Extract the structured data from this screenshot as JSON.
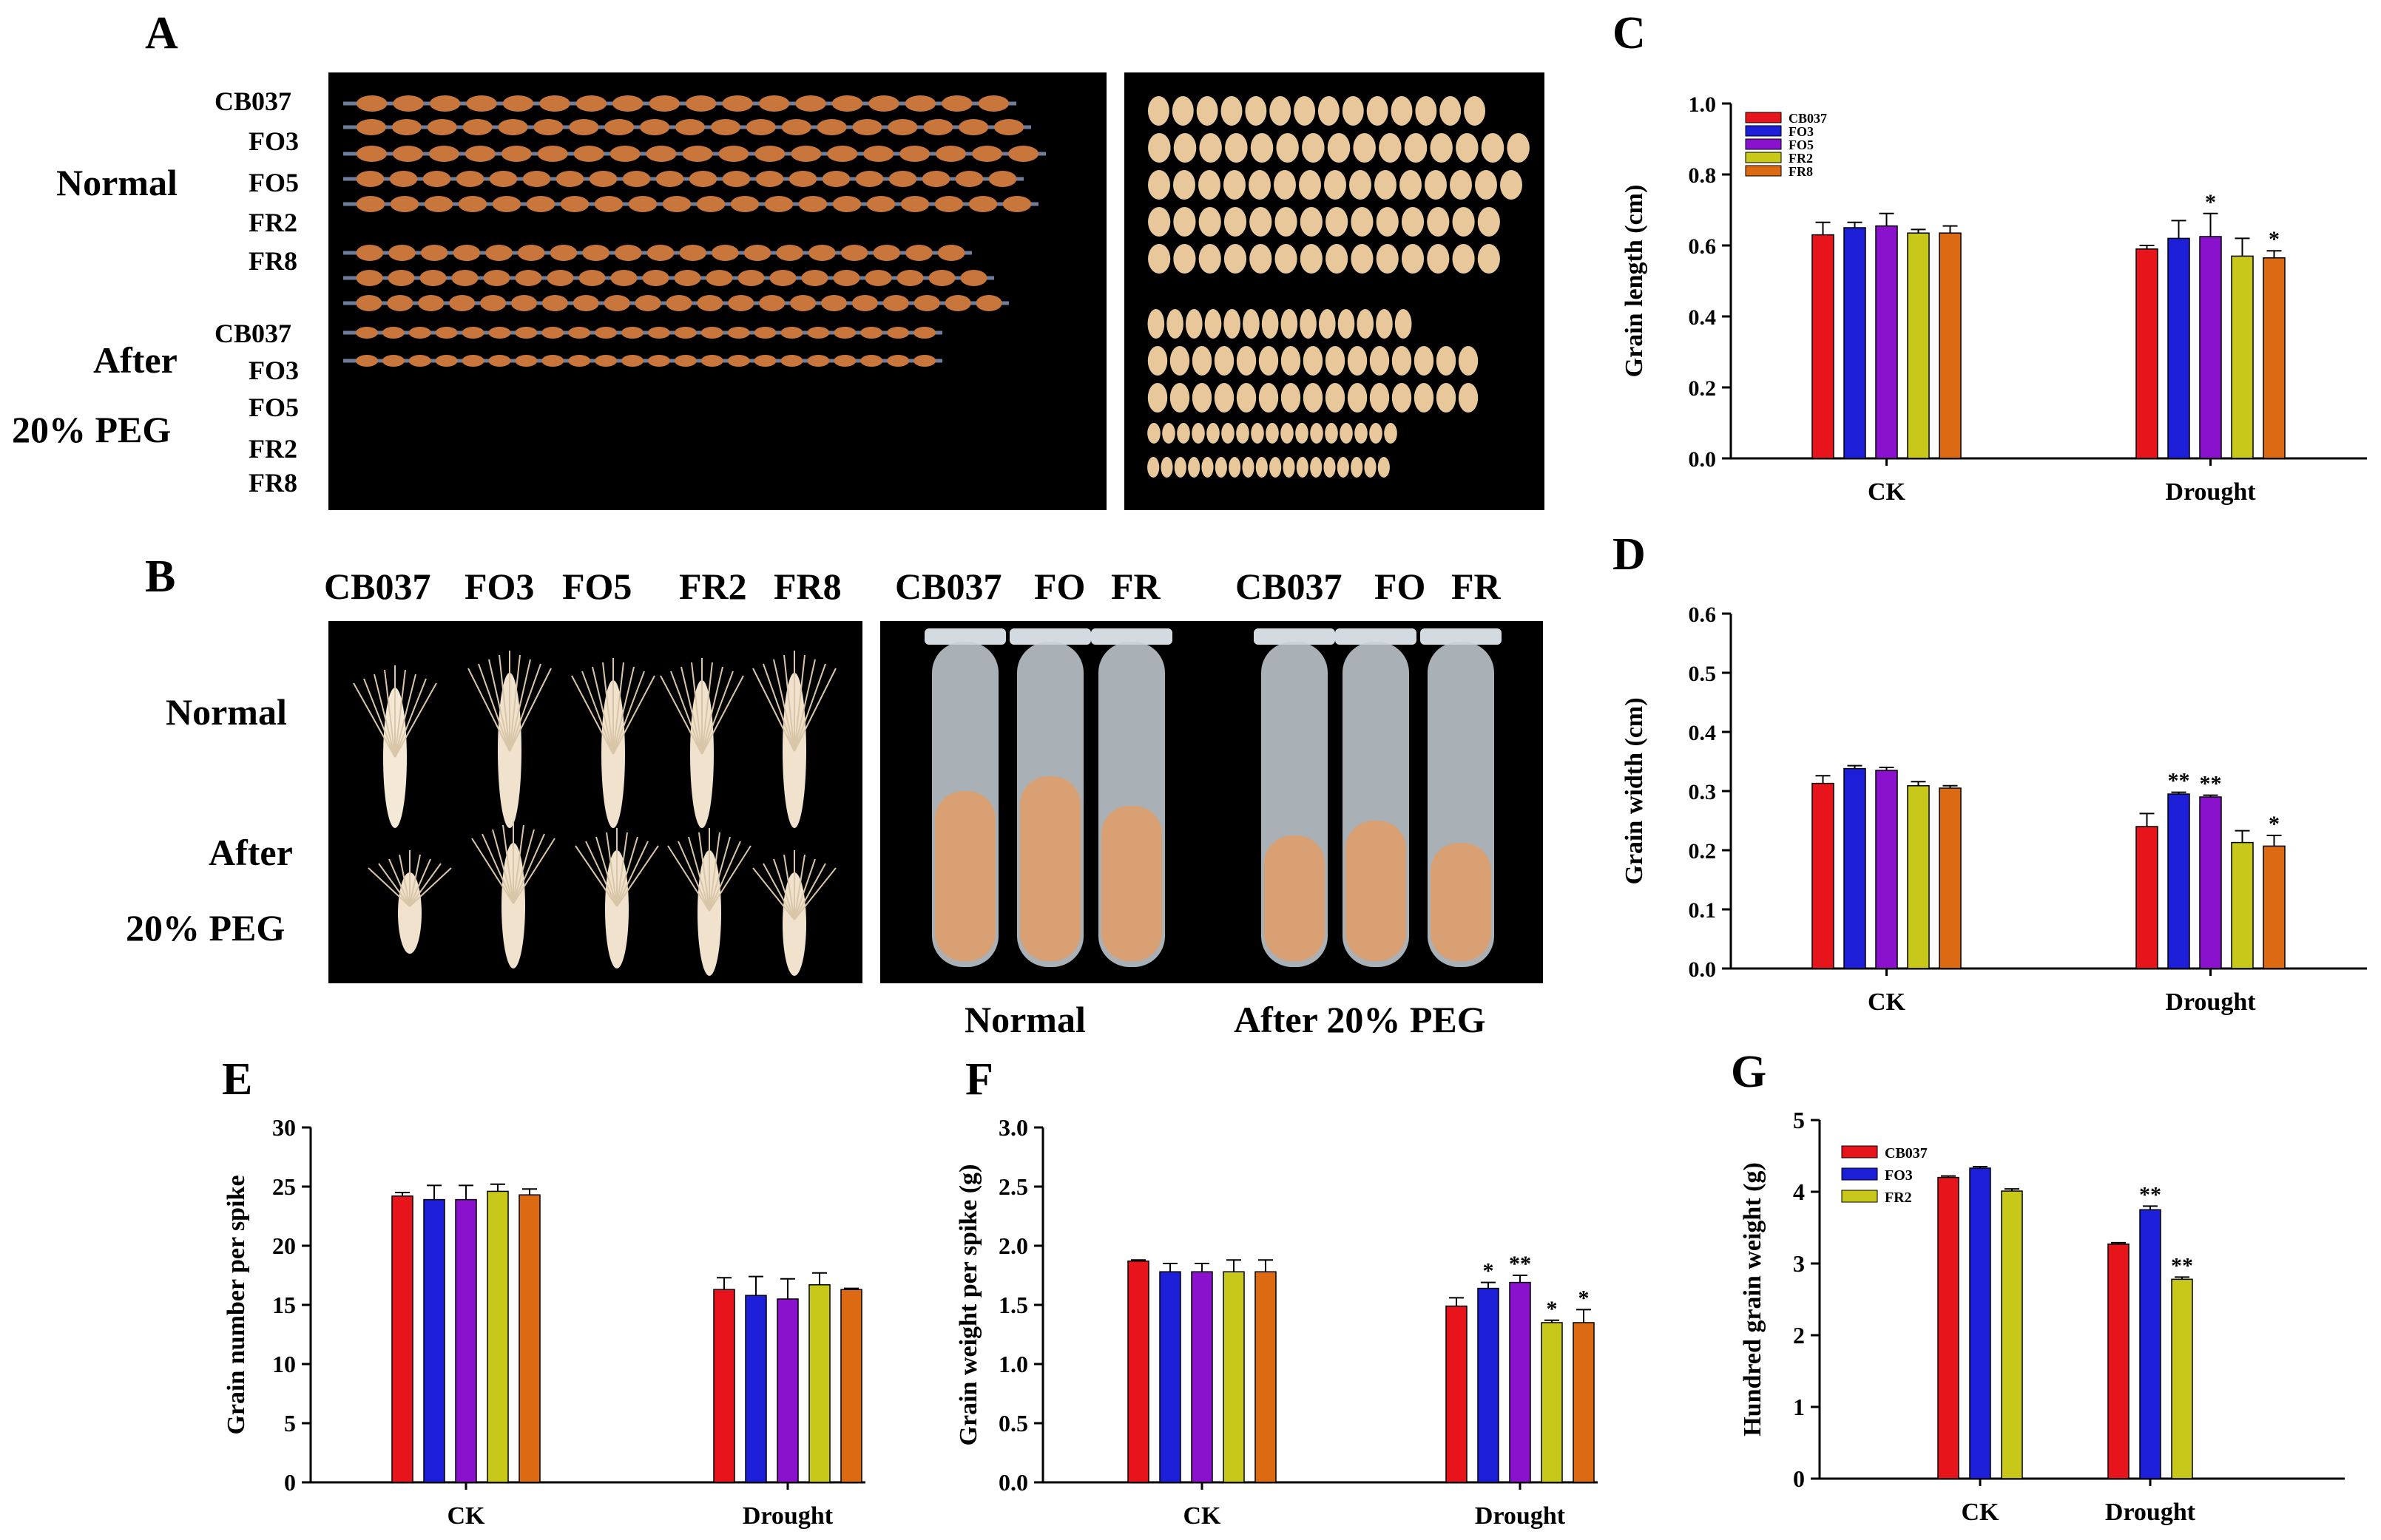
{
  "panel_labels": {
    "A": "A",
    "B": "B",
    "C": "C",
    "D": "D",
    "E": "E",
    "F": "F",
    "G": "G"
  },
  "panelA": {
    "row_labels_top": [
      "CB037",
      "FO3",
      "FO5",
      "FR2",
      "FR8"
    ],
    "row_labels_bottom": [
      "CB037",
      "FO3",
      "FO5",
      "FR2",
      "FR8"
    ],
    "normal": "Normal",
    "after": "After",
    "peg": "20% PEG"
  },
  "panelB": {
    "spike_headers": [
      "CB037",
      "FO3",
      "FO5",
      "FR2",
      "FR8"
    ],
    "tube_headers_normal": [
      "CB037",
      "FO",
      "FR"
    ],
    "tube_headers_peg": [
      "CB037",
      "FO",
      "FR"
    ],
    "normal": "Normal",
    "after": "After",
    "peg": "20% PEG",
    "caption_normal": "Normal",
    "caption_peg": "After 20% PEG"
  },
  "colors": {
    "CB037": "#e8141c",
    "FO3": "#1c1ed8",
    "FO5": "#8a12cc",
    "FR2": "#c8c81a",
    "FR8": "#dc6a12",
    "photo_bg": "#000000",
    "grain": "#c8763c"
  },
  "chart_data": [
    {
      "id": "C",
      "type": "bar",
      "ylabel": "Grain length (cm)",
      "ylim": [
        0,
        1.0
      ],
      "yticks": [
        "0.0",
        "0.2",
        "0.4",
        "0.6",
        "0.8",
        "1.0"
      ],
      "categories": [
        "CK",
        "Drought"
      ],
      "legend": [
        "CB037",
        "FO3",
        "FO5",
        "FR2",
        "FR8"
      ],
      "legend_position": "top-left",
      "series": [
        {
          "name": "CB037",
          "values": [
            0.63,
            0.59
          ],
          "errors": [
            0.035,
            0.01
          ],
          "sig": [
            "",
            ""
          ]
        },
        {
          "name": "FO3",
          "values": [
            0.65,
            0.62
          ],
          "errors": [
            0.015,
            0.05
          ],
          "sig": [
            "",
            ""
          ]
        },
        {
          "name": "FO5",
          "values": [
            0.655,
            0.625
          ],
          "errors": [
            0.035,
            0.065
          ],
          "sig": [
            "",
            "*"
          ]
        },
        {
          "name": "FR2",
          "values": [
            0.635,
            0.57
          ],
          "errors": [
            0.01,
            0.05
          ],
          "sig": [
            "",
            ""
          ]
        },
        {
          "name": "FR8",
          "values": [
            0.635,
            0.565
          ],
          "errors": [
            0.02,
            0.02
          ],
          "sig": [
            "",
            "*"
          ]
        }
      ]
    },
    {
      "id": "D",
      "type": "bar",
      "ylabel": "Grain width (cm)",
      "ylim": [
        0,
        0.6
      ],
      "yticks": [
        "0.0",
        "0.1",
        "0.2",
        "0.3",
        "0.4",
        "0.5",
        "0.6"
      ],
      "categories": [
        "CK",
        "Drought"
      ],
      "legend": [],
      "series": [
        {
          "name": "CB037",
          "values": [
            0.313,
            0.24
          ],
          "errors": [
            0.013,
            0.022
          ],
          "sig": [
            "",
            ""
          ]
        },
        {
          "name": "FO3",
          "values": [
            0.338,
            0.295
          ],
          "errors": [
            0.005,
            0.003
          ],
          "sig": [
            "",
            "**"
          ]
        },
        {
          "name": "FO5",
          "values": [
            0.335,
            0.29
          ],
          "errors": [
            0.005,
            0.003
          ],
          "sig": [
            "",
            "**"
          ]
        },
        {
          "name": "FR2",
          "values": [
            0.309,
            0.213
          ],
          "errors": [
            0.007,
            0.02
          ],
          "sig": [
            "",
            ""
          ]
        },
        {
          "name": "FR8",
          "values": [
            0.305,
            0.207
          ],
          "errors": [
            0.004,
            0.018
          ],
          "sig": [
            "",
            "*"
          ]
        }
      ]
    },
    {
      "id": "E",
      "type": "bar",
      "ylabel": "Grain number per spike",
      "ylim": [
        0,
        30
      ],
      "yticks": [
        "0",
        "5",
        "10",
        "15",
        "20",
        "25",
        "30"
      ],
      "categories": [
        "CK",
        "Drought"
      ],
      "legend": [],
      "series": [
        {
          "name": "CB037",
          "values": [
            24.2,
            16.3
          ],
          "errors": [
            0.3,
            1.0
          ],
          "sig": [
            "",
            ""
          ]
        },
        {
          "name": "FO3",
          "values": [
            23.9,
            15.8
          ],
          "errors": [
            1.2,
            1.6
          ],
          "sig": [
            "",
            ""
          ]
        },
        {
          "name": "FO5",
          "values": [
            23.9,
            15.5
          ],
          "errors": [
            1.2,
            1.7
          ],
          "sig": [
            "",
            ""
          ]
        },
        {
          "name": "FR2",
          "values": [
            24.6,
            16.7
          ],
          "errors": [
            0.6,
            1.0
          ],
          "sig": [
            "",
            ""
          ]
        },
        {
          "name": "FR8",
          "values": [
            24.3,
            16.3
          ],
          "errors": [
            0.5,
            0.1
          ],
          "sig": [
            "",
            ""
          ]
        }
      ]
    },
    {
      "id": "F",
      "type": "bar",
      "ylabel": "Grain weight per spike (g)",
      "ylim": [
        0,
        3.0
      ],
      "yticks": [
        "0.0",
        "0.5",
        "1.0",
        "1.5",
        "2.0",
        "2.5",
        "3.0"
      ],
      "categories": [
        "CK",
        "Drought"
      ],
      "legend": [],
      "series": [
        {
          "name": "CB037",
          "values": [
            1.87,
            1.49
          ],
          "errors": [
            0.01,
            0.07
          ],
          "sig": [
            "",
            ""
          ]
        },
        {
          "name": "FO3",
          "values": [
            1.78,
            1.64
          ],
          "errors": [
            0.07,
            0.05
          ],
          "sig": [
            "",
            "*"
          ]
        },
        {
          "name": "FO5",
          "values": [
            1.78,
            1.69
          ],
          "errors": [
            0.07,
            0.06
          ],
          "sig": [
            "",
            "**"
          ]
        },
        {
          "name": "FR2",
          "values": [
            1.78,
            1.35
          ],
          "errors": [
            0.1,
            0.02
          ],
          "sig": [
            "",
            "*"
          ]
        },
        {
          "name": "FR8",
          "values": [
            1.78,
            1.35
          ],
          "errors": [
            0.1,
            0.11
          ],
          "sig": [
            "",
            "*"
          ]
        }
      ]
    },
    {
      "id": "G",
      "type": "bar",
      "ylabel": "Hundred grain weight (g)",
      "ylim": [
        0,
        5
      ],
      "yticks": [
        "0",
        "1",
        "2",
        "3",
        "4",
        "5"
      ],
      "categories": [
        "CK",
        "Drought"
      ],
      "legend": [
        "CB037",
        "FO3",
        "FR2"
      ],
      "legend_position": "top-left",
      "series": [
        {
          "name": "CB037",
          "values": [
            4.2,
            3.27
          ],
          "errors": [
            0.02,
            0.02
          ],
          "sig": [
            "",
            ""
          ]
        },
        {
          "name": "FO3",
          "values": [
            4.33,
            3.75
          ],
          "errors": [
            0.02,
            0.05
          ],
          "sig": [
            "",
            "**"
          ]
        },
        {
          "name": "FR2",
          "values": [
            4.01,
            2.78
          ],
          "errors": [
            0.03,
            0.03
          ],
          "sig": [
            "",
            "**"
          ]
        }
      ]
    }
  ]
}
